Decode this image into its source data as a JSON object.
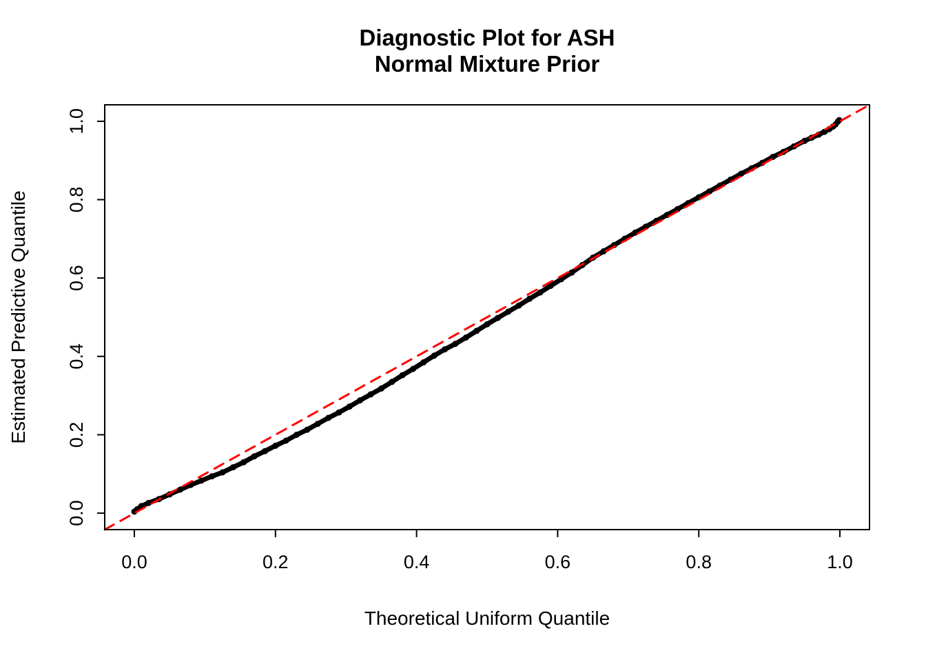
{
  "title": {
    "line1": "Diagnostic Plot for ASH",
    "line2": "Normal Mixture Prior"
  },
  "axes": {
    "x_label": "Theoretical Uniform Quantile",
    "y_label": "Estimated Predictive Quantile"
  },
  "colors": {
    "curve": "#000000",
    "reference": "#FF0000",
    "background": "#FFFFFF",
    "frame": "#000000"
  },
  "chart_data": {
    "type": "scatter",
    "title": "Diagnostic Plot for ASH\nNormal Mixture Prior",
    "xlabel": "Theoretical Uniform Quantile",
    "ylabel": "Estimated Predictive Quantile",
    "xlim": [
      -0.042,
      1.042
    ],
    "ylim": [
      -0.042,
      1.042
    ],
    "x_ticks": [
      0.0,
      0.2,
      0.4,
      0.6,
      0.8,
      1.0
    ],
    "x_tick_labels": [
      "0.0",
      "0.2",
      "0.4",
      "0.6",
      "0.8",
      "1.0"
    ],
    "y_ticks": [
      0.0,
      0.2,
      0.4,
      0.6,
      0.8,
      1.0
    ],
    "y_tick_labels": [
      "0.0",
      "0.2",
      "0.4",
      "0.6",
      "0.8",
      "1.0"
    ],
    "grid": false,
    "legend": null,
    "series": [
      {
        "name": "estimated-predictive-quantiles",
        "type": "line",
        "color": "#000000",
        "line_width": 7,
        "point_radius": 4.5,
        "dashed": false,
        "points": [
          [
            0.0,
            0.004
          ],
          [
            0.004,
            0.01
          ],
          [
            0.01,
            0.018
          ],
          [
            0.02,
            0.026
          ],
          [
            0.035,
            0.036
          ],
          [
            0.05,
            0.048
          ],
          [
            0.065,
            0.06
          ],
          [
            0.08,
            0.072
          ],
          [
            0.095,
            0.083
          ],
          [
            0.11,
            0.094
          ],
          [
            0.125,
            0.104
          ],
          [
            0.14,
            0.117
          ],
          [
            0.155,
            0.13
          ],
          [
            0.17,
            0.145
          ],
          [
            0.185,
            0.158
          ],
          [
            0.2,
            0.172
          ],
          [
            0.215,
            0.185
          ],
          [
            0.23,
            0.2
          ],
          [
            0.245,
            0.213
          ],
          [
            0.26,
            0.228
          ],
          [
            0.275,
            0.243
          ],
          [
            0.29,
            0.257
          ],
          [
            0.305,
            0.272
          ],
          [
            0.32,
            0.288
          ],
          [
            0.335,
            0.303
          ],
          [
            0.35,
            0.318
          ],
          [
            0.365,
            0.335
          ],
          [
            0.38,
            0.352
          ],
          [
            0.395,
            0.368
          ],
          [
            0.41,
            0.385
          ],
          [
            0.425,
            0.402
          ],
          [
            0.44,
            0.418
          ],
          [
            0.455,
            0.432
          ],
          [
            0.47,
            0.448
          ],
          [
            0.485,
            0.465
          ],
          [
            0.5,
            0.482
          ],
          [
            0.515,
            0.498
          ],
          [
            0.53,
            0.514
          ],
          [
            0.545,
            0.53
          ],
          [
            0.56,
            0.547
          ],
          [
            0.575,
            0.563
          ],
          [
            0.59,
            0.58
          ],
          [
            0.605,
            0.597
          ],
          [
            0.62,
            0.614
          ],
          [
            0.635,
            0.633
          ],
          [
            0.65,
            0.652
          ],
          [
            0.665,
            0.668
          ],
          [
            0.68,
            0.684
          ],
          [
            0.695,
            0.7
          ],
          [
            0.71,
            0.716
          ],
          [
            0.725,
            0.731
          ],
          [
            0.74,
            0.746
          ],
          [
            0.755,
            0.761
          ],
          [
            0.77,
            0.776
          ],
          [
            0.785,
            0.791
          ],
          [
            0.8,
            0.806
          ],
          [
            0.815,
            0.821
          ],
          [
            0.83,
            0.836
          ],
          [
            0.845,
            0.851
          ],
          [
            0.86,
            0.866
          ],
          [
            0.875,
            0.88
          ],
          [
            0.89,
            0.894
          ],
          [
            0.905,
            0.909
          ],
          [
            0.92,
            0.922
          ],
          [
            0.935,
            0.936
          ],
          [
            0.95,
            0.95
          ],
          [
            0.96,
            0.958
          ],
          [
            0.97,
            0.966
          ],
          [
            0.978,
            0.973
          ],
          [
            0.985,
            0.98
          ],
          [
            0.99,
            0.986
          ],
          [
            0.994,
            0.992
          ],
          [
            0.997,
            0.999
          ],
          [
            0.999,
            1.003
          ]
        ]
      },
      {
        "name": "reference-diagonal",
        "type": "line",
        "color": "#FF0000",
        "line_width": 3,
        "point_radius": 0,
        "dashed": true,
        "points": [
          [
            -0.042,
            -0.042
          ],
          [
            1.042,
            1.042
          ]
        ]
      }
    ]
  }
}
